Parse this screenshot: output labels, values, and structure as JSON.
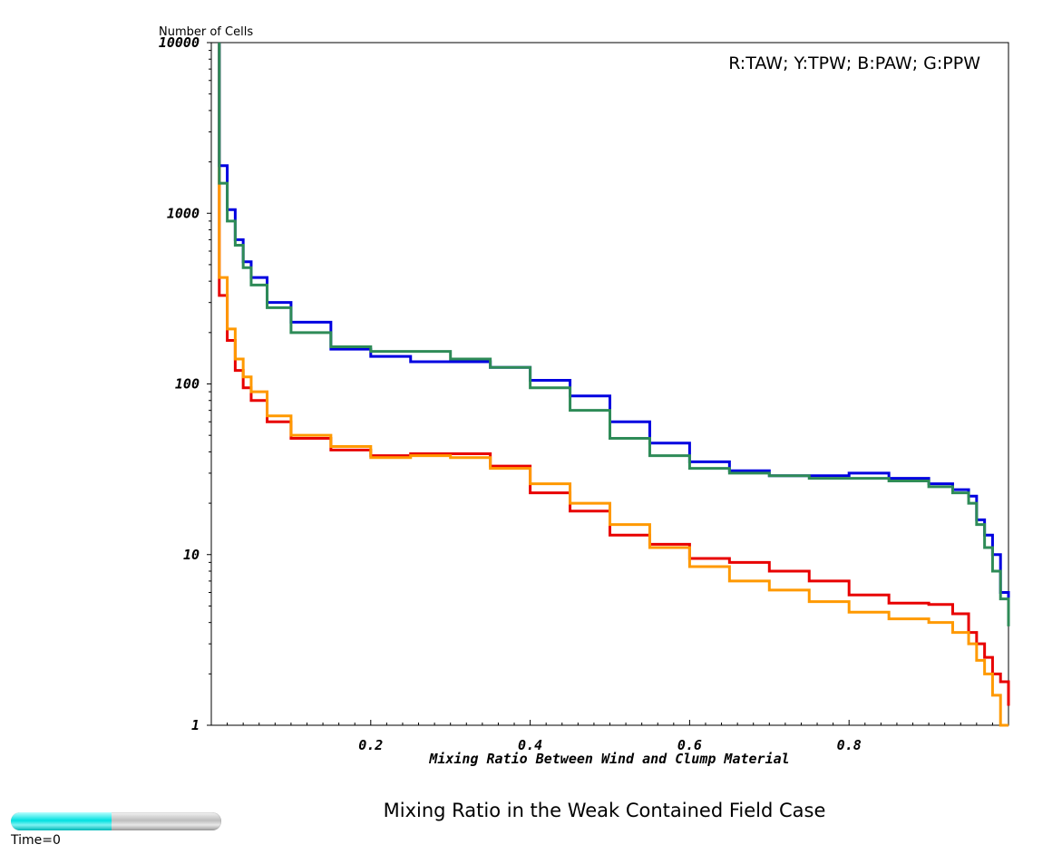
{
  "chart_data": {
    "type": "line",
    "title": "Mixing Ratio in the Weak Contained Field Case",
    "xlabel": "Mixing Ratio Between Wind and Clump Material",
    "ylabel": "Number of Cells",
    "xlim": [
      0.0,
      1.0
    ],
    "ylim": [
      1,
      10000
    ],
    "yscale": "log",
    "x_ticks": [
      "0.2",
      "0.4",
      "0.6",
      "0.8"
    ],
    "y_ticks": [
      "1",
      "10",
      "100",
      "1000",
      "10000"
    ],
    "legend": "R:TAW; Y:TPW; B:PAW; G:PPW",
    "legend_position": "top-right",
    "grid": false,
    "x": [
      0.01,
      0.02,
      0.03,
      0.04,
      0.05,
      0.07,
      0.1,
      0.15,
      0.2,
      0.25,
      0.3,
      0.35,
      0.4,
      0.45,
      0.5,
      0.55,
      0.6,
      0.65,
      0.7,
      0.75,
      0.8,
      0.85,
      0.9,
      0.93,
      0.95,
      0.96,
      0.97,
      0.98,
      0.99,
      1.0
    ],
    "series": [
      {
        "color": "#e80000",
        "values": [
          330,
          180,
          120,
          95,
          80,
          60,
          48,
          41,
          38,
          39,
          39,
          33,
          23,
          18,
          13,
          11.5,
          9.5,
          9,
          8,
          7,
          5.8,
          5.2,
          5.1,
          4.5,
          3.5,
          3.0,
          2.5,
          2.0,
          1.8,
          1.3
        ]
      },
      {
        "color": "#ff9900",
        "values": [
          420,
          210,
          140,
          110,
          90,
          65,
          50,
          43,
          37,
          38,
          37,
          32,
          26,
          20,
          15,
          11,
          8.5,
          7,
          6.2,
          5.3,
          4.6,
          4.2,
          4.0,
          3.5,
          3.0,
          2.4,
          2.0,
          1.5,
          1.0,
          1.0
        ]
      },
      {
        "color": "#0000e0",
        "values": [
          1900,
          1050,
          700,
          520,
          420,
          300,
          230,
          160,
          145,
          135,
          135,
          125,
          105,
          85,
          60,
          45,
          35,
          31,
          29,
          29,
          30,
          28,
          26,
          24,
          22,
          16,
          13,
          10,
          6,
          5
        ]
      },
      {
        "color": "#2e8b57",
        "values": [
          1500,
          900,
          650,
          480,
          380,
          280,
          200,
          165,
          155,
          155,
          140,
          125,
          95,
          70,
          48,
          38,
          32,
          30,
          29,
          28,
          28,
          27,
          25,
          23,
          20,
          15,
          11,
          8,
          5.5,
          3.8
        ]
      }
    ]
  },
  "time_indicator": {
    "label": "Time=0",
    "progress": 0.48
  }
}
